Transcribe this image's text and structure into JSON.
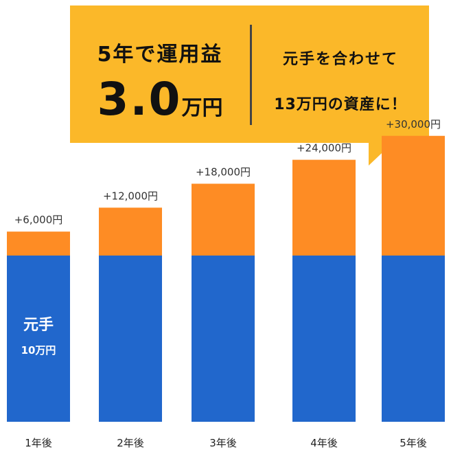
{
  "callout": {
    "heading": "5年で運用益",
    "amount_value": "3.0",
    "amount_unit": "万円",
    "line1": "元手を合わせて",
    "line2": "13万円の資産に！"
  },
  "principal_label": {
    "title": "元手",
    "amount": "10万円"
  },
  "colors": {
    "principal": "#2167cc",
    "gain": "#fe8c24",
    "callout": "#fbb829"
  },
  "chart_data": {
    "type": "bar",
    "stacked": true,
    "categories": [
      "1年後",
      "2年後",
      "3年後",
      "4年後",
      "5年後"
    ],
    "series": [
      {
        "name": "元手",
        "values": [
          100000,
          100000,
          100000,
          100000,
          100000
        ]
      },
      {
        "values": [
          6000,
          12000,
          18000,
          24000,
          30000
        ]
      }
    ],
    "value_labels": [
      "+6,000円",
      "+12,000円",
      "+18,000円",
      "+24,000円",
      "+30,000円"
    ],
    "legend": "none",
    "grid": false
  }
}
